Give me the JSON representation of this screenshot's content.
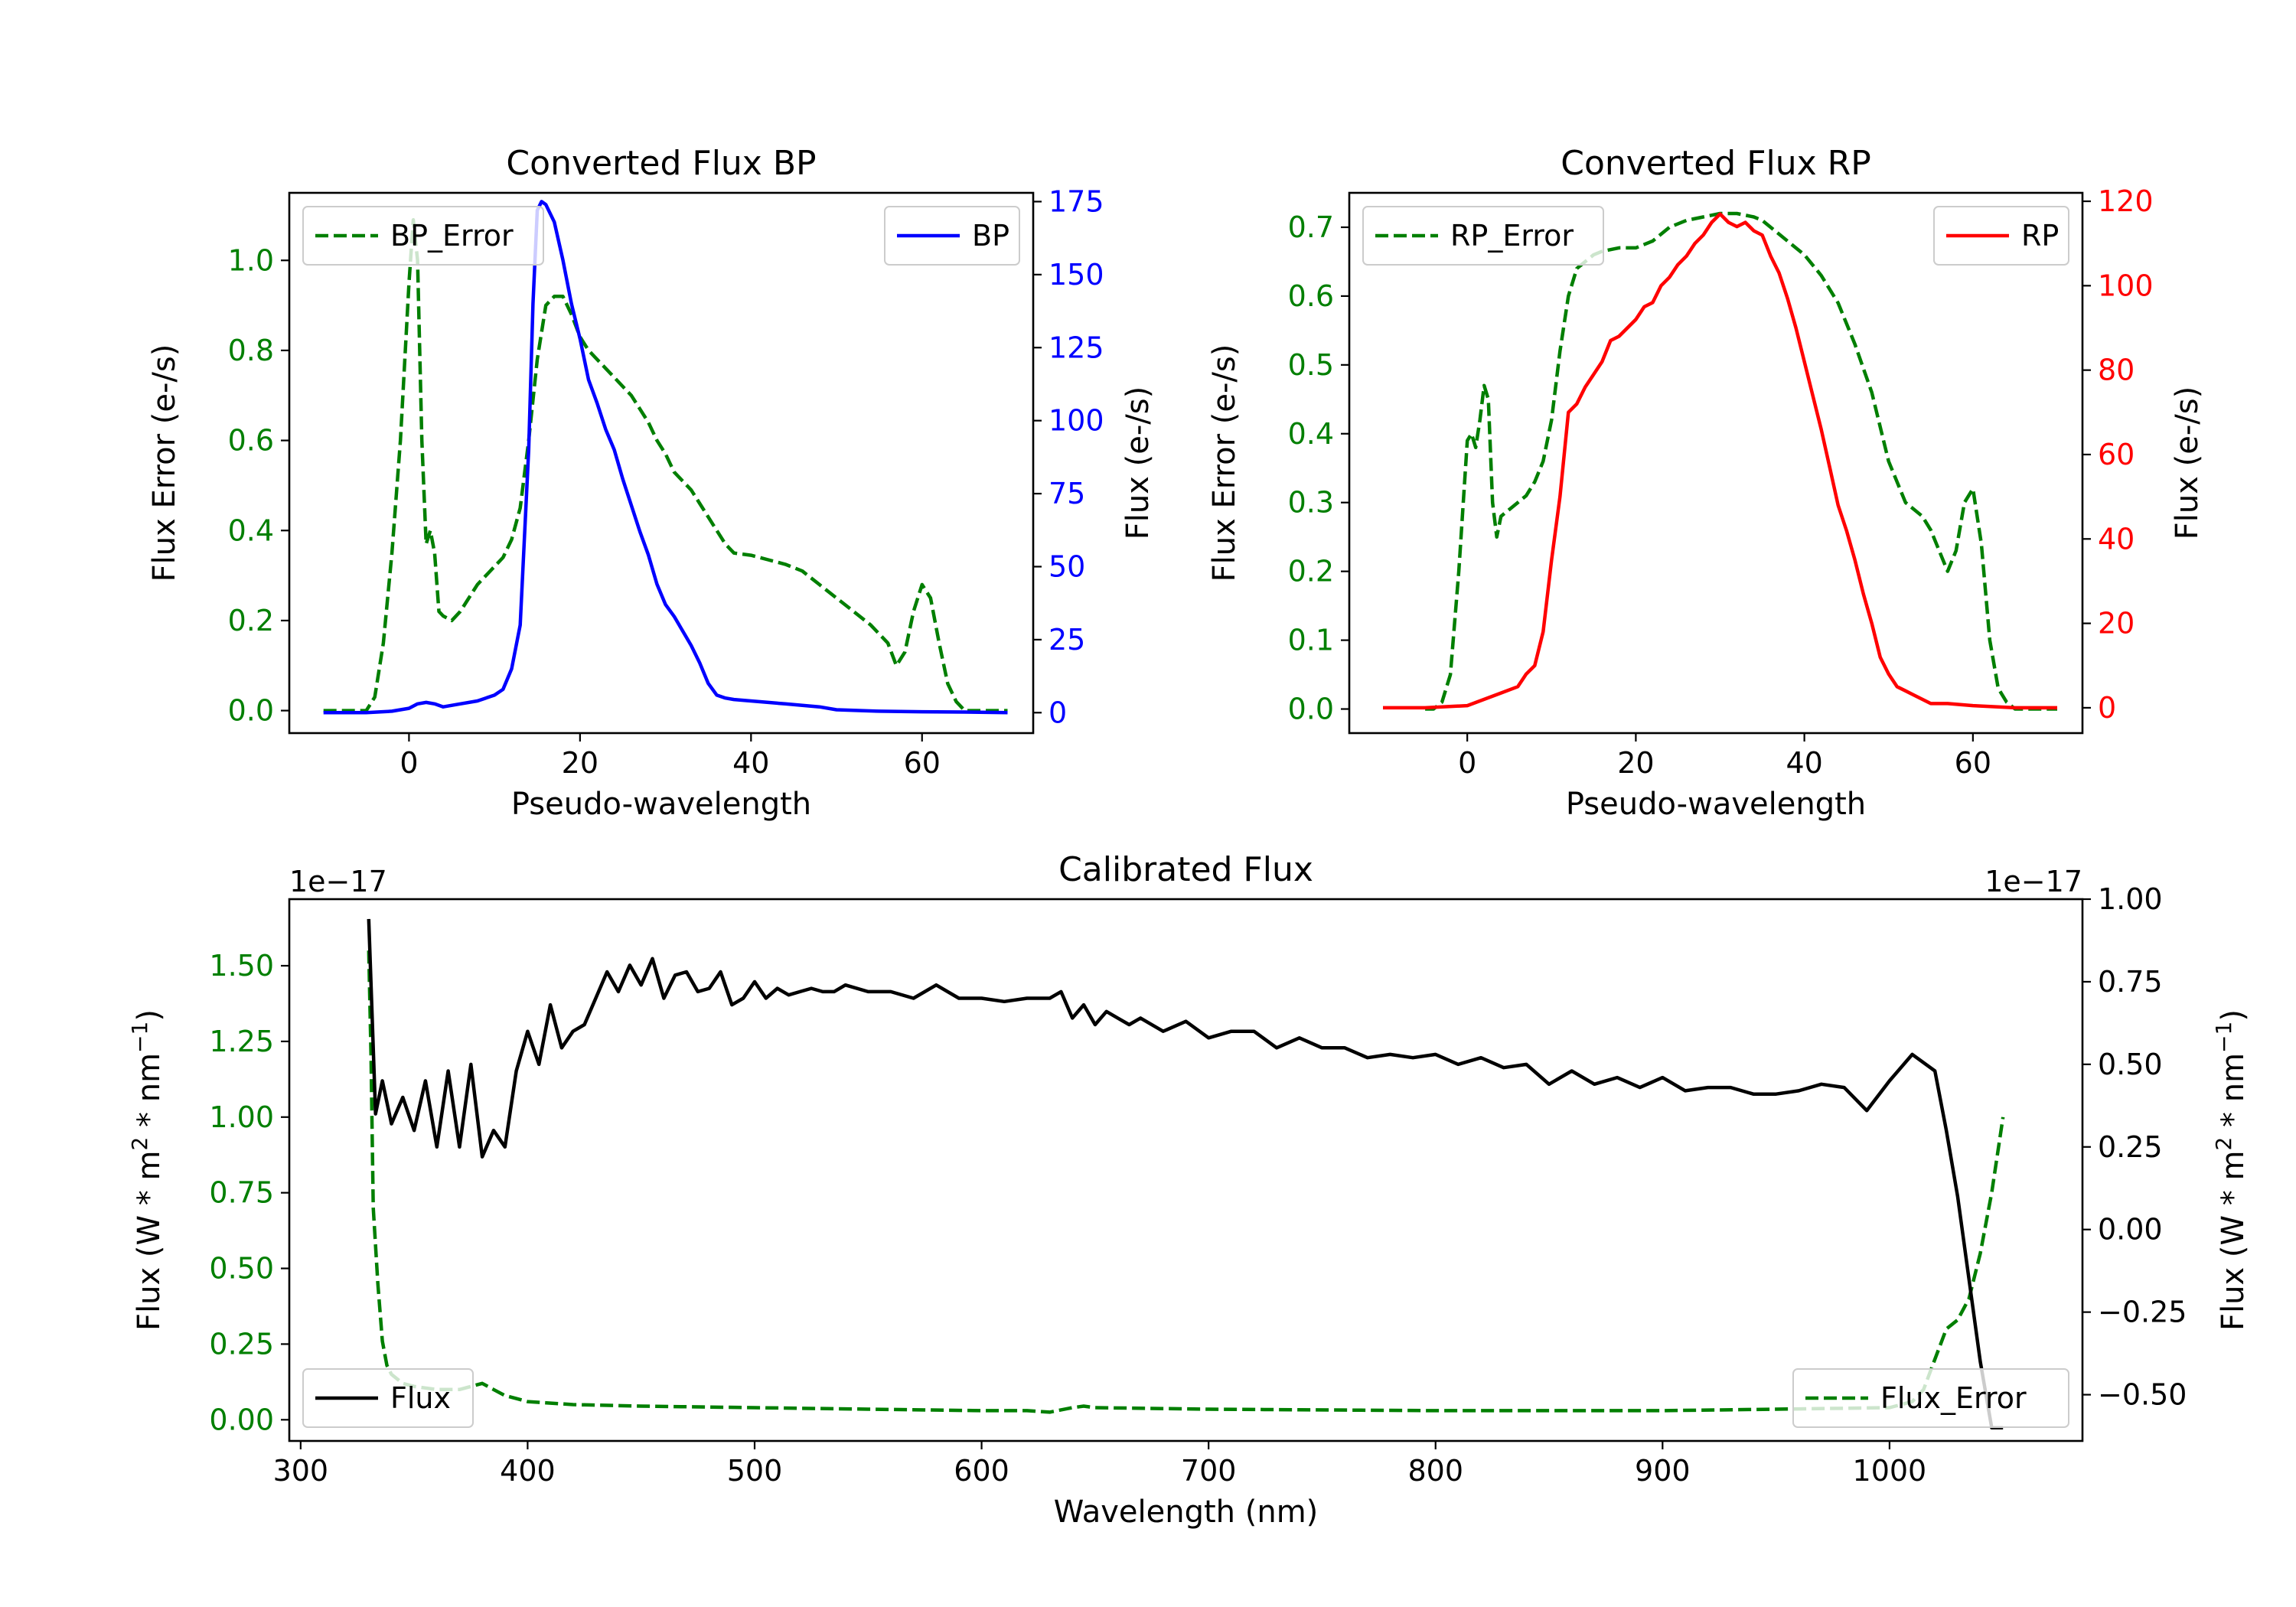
{
  "colors": {
    "green": "#007f00",
    "blue": "#0000ff",
    "red": "#ff0000",
    "black": "#000000"
  },
  "chart_data": [
    {
      "id": "bp",
      "type": "line",
      "title": "Converted Flux BP",
      "xlabel": "Pseudo-wavelength",
      "ylabel_left": "Flux Error (e-/s)",
      "ylabel_right": "Flux (e-/s)",
      "xlim": [
        -14,
        73
      ],
      "ylim_left": [
        -0.05,
        1.15
      ],
      "ylim_right": [
        -7,
        178
      ],
      "xticks": [
        0,
        20,
        40,
        60
      ],
      "yticks_left": [
        0.0,
        0.2,
        0.4,
        0.6,
        0.8,
        1.0
      ],
      "yticks_right": [
        0,
        25,
        50,
        75,
        100,
        125,
        150,
        175
      ],
      "legend_left": "BP_Error",
      "legend_right": "BP",
      "series_error": {
        "name": "BP_Error",
        "axis": "left",
        "style": "dashed",
        "color": "green",
        "x": [
          -10,
          -5,
          -4,
          -3,
          -2,
          -1,
          0,
          0.5,
          1,
          1.5,
          2,
          2.5,
          3,
          3.5,
          4,
          5,
          6,
          7,
          8,
          9,
          10,
          11,
          12,
          13,
          14,
          15,
          16,
          17,
          18,
          19,
          20,
          21,
          22,
          23,
          24,
          25,
          26,
          27,
          28,
          29,
          30,
          31,
          32,
          33,
          34,
          35,
          36,
          37,
          38,
          40,
          42,
          44,
          46,
          48,
          50,
          52,
          54,
          56,
          57,
          58,
          59,
          60,
          61,
          62,
          63,
          64,
          65,
          66,
          70
        ],
        "y": [
          0.0,
          0.0,
          0.03,
          0.15,
          0.35,
          0.6,
          0.95,
          1.09,
          1.0,
          0.6,
          0.37,
          0.4,
          0.35,
          0.22,
          0.21,
          0.2,
          0.22,
          0.25,
          0.28,
          0.3,
          0.32,
          0.34,
          0.38,
          0.45,
          0.6,
          0.78,
          0.9,
          0.92,
          0.92,
          0.88,
          0.83,
          0.8,
          0.78,
          0.76,
          0.74,
          0.72,
          0.7,
          0.67,
          0.64,
          0.6,
          0.57,
          0.53,
          0.51,
          0.49,
          0.46,
          0.43,
          0.4,
          0.37,
          0.35,
          0.345,
          0.335,
          0.325,
          0.31,
          0.28,
          0.25,
          0.22,
          0.19,
          0.15,
          0.1,
          0.13,
          0.22,
          0.28,
          0.25,
          0.15,
          0.06,
          0.02,
          0.0,
          0.0,
          0.0
        ]
      },
      "series_flux": {
        "name": "BP",
        "axis": "right",
        "style": "solid",
        "color": "blue",
        "x": [
          -10,
          -5,
          -2,
          0,
          1,
          2,
          3,
          4,
          6,
          8,
          10,
          11,
          12,
          13,
          14,
          14.5,
          15,
          15.5,
          16,
          17,
          18,
          19,
          20,
          21,
          22,
          23,
          24,
          25,
          26,
          27,
          28,
          29,
          30,
          31,
          32,
          33,
          34,
          35,
          36,
          37,
          38,
          40,
          42,
          44,
          46,
          48,
          50,
          55,
          60,
          65,
          70
        ],
        "y": [
          0,
          0,
          0.5,
          1.5,
          3,
          3.5,
          3,
          2,
          3,
          4,
          6,
          8,
          15,
          30,
          90,
          140,
          172,
          175,
          174,
          168,
          155,
          140,
          128,
          114,
          106,
          97,
          90,
          80,
          71,
          62,
          54,
          44,
          37,
          33,
          28,
          23,
          17,
          10,
          6,
          5,
          4.5,
          4,
          3.5,
          3,
          2.5,
          2,
          1,
          0.5,
          0.3,
          0.2,
          0
        ]
      }
    },
    {
      "id": "rp",
      "type": "line",
      "title": "Converted Flux RP",
      "xlabel": "Pseudo-wavelength",
      "ylabel_left": "Flux Error (e-/s)",
      "ylabel_right": "Flux (e-/s)",
      "xlim": [
        -14,
        73
      ],
      "ylim_left": [
        -0.035,
        0.75
      ],
      "ylim_right": [
        -6,
        122
      ],
      "xticks": [
        0,
        20,
        40,
        60
      ],
      "yticks_left": [
        0.0,
        0.1,
        0.2,
        0.3,
        0.4,
        0.5,
        0.6,
        0.7
      ],
      "yticks_right": [
        0,
        20,
        40,
        60,
        80,
        100,
        120
      ],
      "legend_left": "RP_Error",
      "legend_right": "RP",
      "series_error": {
        "name": "RP_Error",
        "axis": "left",
        "style": "dashed",
        "color": "green",
        "x": [
          -5,
          -4,
          -3,
          -2,
          -1,
          0,
          0.5,
          1,
          1.5,
          2,
          2.5,
          3,
          3.5,
          4,
          5,
          6,
          7,
          8,
          9,
          10,
          11,
          12,
          13,
          14,
          15,
          16,
          18,
          20,
          22,
          24,
          26,
          28,
          30,
          32,
          34,
          35,
          36,
          38,
          40,
          42,
          44,
          46,
          48,
          50,
          52,
          54,
          55,
          56,
          57,
          58,
          59,
          60,
          61,
          62,
          63,
          64,
          65,
          70
        ],
        "y": [
          0.0,
          0.0,
          0.01,
          0.05,
          0.2,
          0.39,
          0.4,
          0.38,
          0.42,
          0.47,
          0.45,
          0.3,
          0.25,
          0.28,
          0.29,
          0.3,
          0.31,
          0.33,
          0.36,
          0.42,
          0.52,
          0.6,
          0.64,
          0.65,
          0.66,
          0.665,
          0.67,
          0.67,
          0.68,
          0.7,
          0.71,
          0.715,
          0.72,
          0.72,
          0.715,
          0.71,
          0.7,
          0.68,
          0.66,
          0.63,
          0.59,
          0.53,
          0.46,
          0.36,
          0.3,
          0.28,
          0.26,
          0.23,
          0.2,
          0.23,
          0.3,
          0.32,
          0.24,
          0.1,
          0.03,
          0.01,
          0.0,
          0.0
        ]
      },
      "series_flux": {
        "name": "RP",
        "axis": "right",
        "style": "solid",
        "color": "red",
        "x": [
          -10,
          -5,
          0,
          2,
          4,
          6,
          7,
          8,
          9,
          10,
          11,
          12,
          13,
          14,
          15,
          16,
          17,
          18,
          19,
          20,
          21,
          22,
          23,
          24,
          25,
          26,
          27,
          28,
          29,
          30,
          31,
          32,
          33,
          34,
          35,
          36,
          37,
          38,
          39,
          40,
          41,
          42,
          43,
          44,
          45,
          46,
          47,
          48,
          49,
          50,
          51,
          52,
          53,
          54,
          55,
          57,
          60,
          65,
          70
        ],
        "y": [
          0,
          0,
          0.5,
          2,
          3.5,
          5,
          8,
          10,
          18,
          35,
          50,
          70,
          72,
          76,
          79,
          82,
          87,
          88,
          90,
          92,
          95,
          96,
          100,
          102,
          105,
          107,
          110,
          112,
          115,
          117,
          115,
          114,
          115,
          113,
          112,
          107,
          103,
          97,
          90,
          82,
          74,
          66,
          57,
          48,
          42,
          35,
          27,
          20,
          12,
          8,
          5,
          4,
          3,
          2,
          1,
          1,
          0.5,
          0,
          0
        ]
      }
    },
    {
      "id": "cal",
      "type": "line",
      "title": "Calibrated Flux",
      "xlabel": "Wavelength (nm)",
      "ylabel_left": "Flux (W * m^2 * nm^-1)",
      "ylabel_right": "Flux (W * m^2 * nm^-1)",
      "offset_left": "1e−17",
      "offset_right": "1e−17",
      "xlim": [
        295,
        1085
      ],
      "ylim_left": [
        -0.07,
        1.72
      ],
      "ylim_right": [
        -0.64,
        1.0
      ],
      "xticks": [
        300,
        400,
        500,
        600,
        700,
        800,
        900,
        1000
      ],
      "yticks_left": [
        0.0,
        0.25,
        0.5,
        0.75,
        1.0,
        1.25,
        1.5
      ],
      "yticks_left_labels": [
        "0.00",
        "0.25",
        "0.50",
        "0.75",
        "1.00",
        "1.25",
        "1.50"
      ],
      "yticks_right": [
        -0.5,
        -0.25,
        0.0,
        0.25,
        0.5,
        0.75,
        1.0
      ],
      "yticks_right_labels": [
        "−0.50",
        "−0.25",
        "0.00",
        "0.25",
        "0.50",
        "0.75",
        "1.00"
      ],
      "legend_left": "Flux",
      "legend_right": "Flux_Error",
      "series_flux": {
        "name": "Flux",
        "axis": "right",
        "style": "solid",
        "color": "black",
        "x": [
          330,
          333,
          336,
          340,
          345,
          350,
          355,
          360,
          365,
          370,
          375,
          380,
          385,
          390,
          395,
          400,
          405,
          410,
          415,
          420,
          425,
          430,
          435,
          440,
          445,
          450,
          455,
          460,
          465,
          470,
          475,
          480,
          485,
          490,
          495,
          500,
          505,
          510,
          515,
          520,
          525,
          530,
          535,
          540,
          550,
          560,
          570,
          580,
          590,
          600,
          610,
          620,
          630,
          635,
          640,
          645,
          650,
          655,
          660,
          665,
          670,
          680,
          690,
          700,
          710,
          720,
          730,
          740,
          750,
          760,
          770,
          780,
          790,
          800,
          810,
          820,
          830,
          840,
          850,
          860,
          870,
          880,
          890,
          900,
          910,
          920,
          930,
          940,
          950,
          960,
          970,
          980,
          990,
          1000,
          1010,
          1020,
          1025,
          1030,
          1035,
          1040,
          1045,
          1050
        ],
        "y": [
          0.94,
          0.35,
          0.45,
          0.32,
          0.4,
          0.3,
          0.45,
          0.25,
          0.48,
          0.25,
          0.5,
          0.22,
          0.3,
          0.25,
          0.48,
          0.6,
          0.5,
          0.68,
          0.55,
          0.6,
          0.62,
          0.7,
          0.78,
          0.72,
          0.8,
          0.74,
          0.82,
          0.7,
          0.77,
          0.78,
          0.72,
          0.73,
          0.78,
          0.68,
          0.7,
          0.75,
          0.7,
          0.73,
          0.71,
          0.72,
          0.73,
          0.72,
          0.72,
          0.74,
          0.72,
          0.72,
          0.7,
          0.74,
          0.7,
          0.7,
          0.69,
          0.7,
          0.7,
          0.72,
          0.64,
          0.68,
          0.62,
          0.66,
          0.64,
          0.62,
          0.64,
          0.6,
          0.63,
          0.58,
          0.6,
          0.6,
          0.55,
          0.58,
          0.55,
          0.55,
          0.52,
          0.53,
          0.52,
          0.53,
          0.5,
          0.52,
          0.49,
          0.5,
          0.44,
          0.48,
          0.44,
          0.46,
          0.43,
          0.46,
          0.42,
          0.43,
          0.43,
          0.41,
          0.41,
          0.42,
          0.44,
          0.43,
          0.36,
          0.45,
          0.53,
          0.48,
          0.3,
          0.1,
          -0.15,
          -0.4,
          -0.6,
          -0.6
        ]
      },
      "series_error": {
        "name": "Flux_Error",
        "axis": "left",
        "style": "dashed",
        "color": "green",
        "x": [
          330,
          331,
          332,
          334,
          336,
          338,
          340,
          345,
          350,
          360,
          370,
          380,
          385,
          390,
          395,
          400,
          420,
          450,
          500,
          550,
          600,
          620,
          630,
          640,
          645,
          650,
          700,
          800,
          900,
          950,
          1000,
          1010,
          1015,
          1020,
          1025,
          1030,
          1035,
          1040,
          1045,
          1050
        ],
        "y": [
          1.55,
          1.2,
          0.7,
          0.45,
          0.26,
          0.18,
          0.15,
          0.12,
          0.11,
          0.1,
          0.1,
          0.12,
          0.1,
          0.08,
          0.07,
          0.06,
          0.05,
          0.045,
          0.04,
          0.035,
          0.03,
          0.03,
          0.025,
          0.04,
          0.045,
          0.04,
          0.035,
          0.03,
          0.03,
          0.035,
          0.04,
          0.06,
          0.1,
          0.2,
          0.3,
          0.33,
          0.4,
          0.55,
          0.75,
          1.0
        ]
      }
    }
  ]
}
